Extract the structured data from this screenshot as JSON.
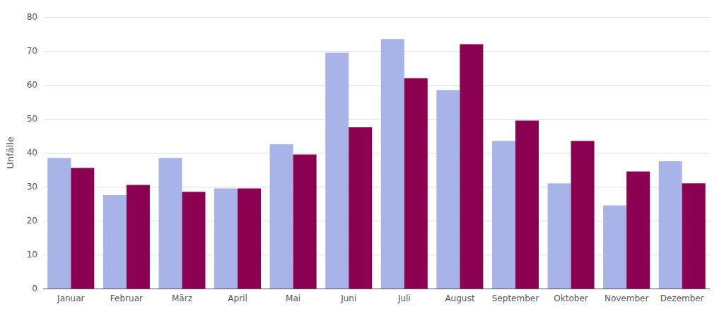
{
  "chart_data": {
    "type": "bar",
    "ylabel": "Unfälle",
    "categories": [
      "Januar",
      "Februar",
      "März",
      "April",
      "Mai",
      "Juni",
      "Juli",
      "August",
      "September",
      "Oktober",
      "November",
      "Dezember"
    ],
    "series": [
      {
        "color": "#a8b4e8",
        "values": [
          38.5,
          27.5,
          38.5,
          29.5,
          42.5,
          69.5,
          73.5,
          58.5,
          43.5,
          31.0,
          24.5,
          37.5
        ]
      },
      {
        "color": "#8b0050",
        "values": [
          35.5,
          30.5,
          28.5,
          29.5,
          39.5,
          47.5,
          62.0,
          72.0,
          49.5,
          43.5,
          34.5,
          31.0
        ]
      }
    ],
    "ylim": [
      0,
      80
    ],
    "yticks": [
      0,
      10,
      20,
      30,
      40,
      50,
      60,
      70,
      80
    ],
    "grid": true
  }
}
